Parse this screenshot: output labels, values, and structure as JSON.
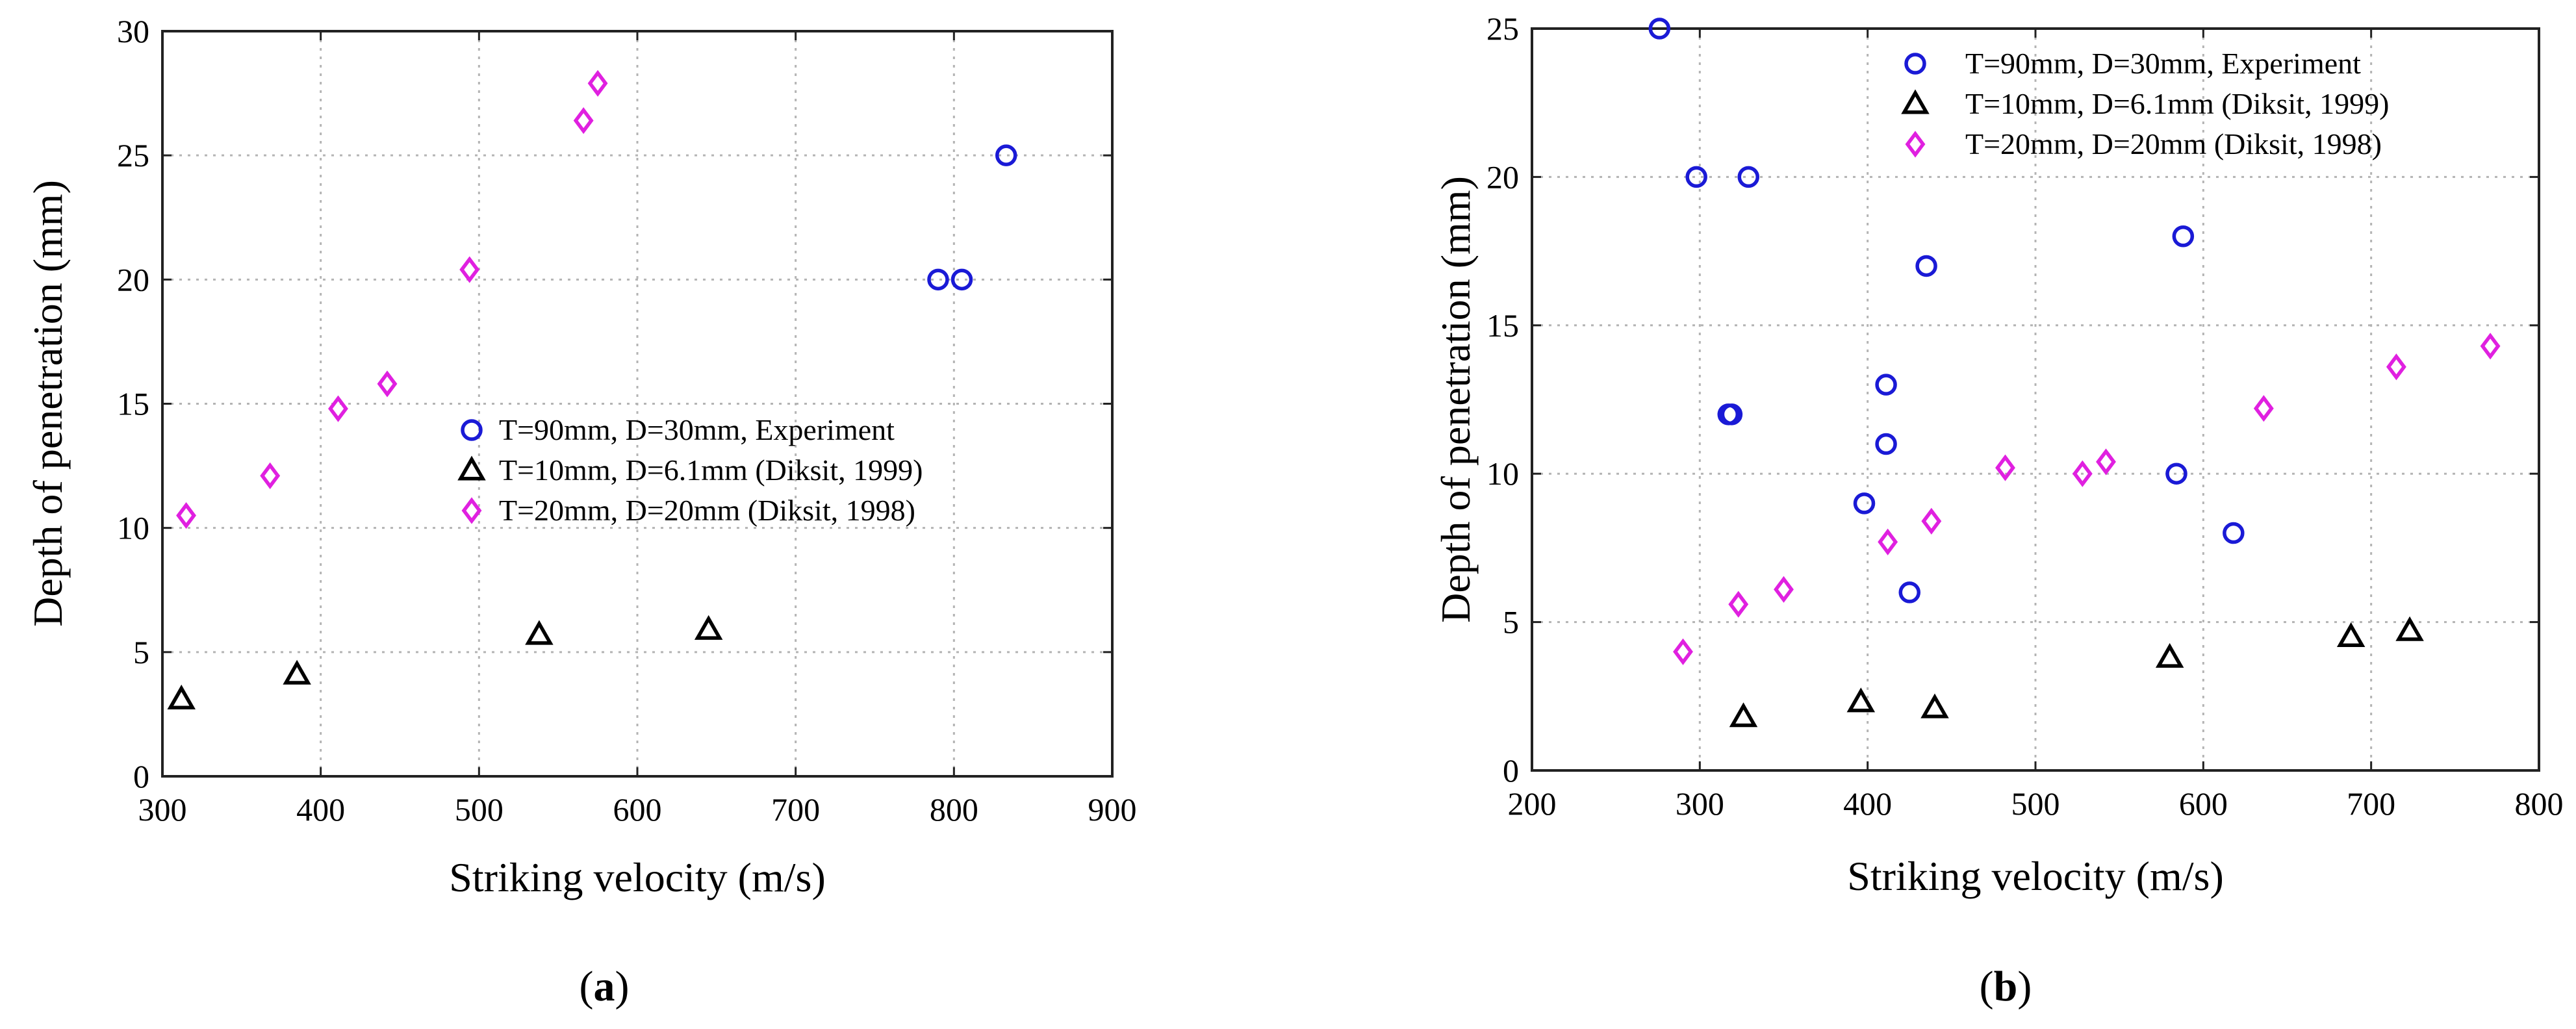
{
  "colors": {
    "series_blue": "#1a1ad6",
    "series_black": "#000000",
    "series_magenta": "#e020e0"
  },
  "chart_data": [
    {
      "type": "scatter",
      "panel_label": "(a)",
      "panel_letter": "a",
      "xlabel": "Striking velocity (m/s)",
      "ylabel": "Depth of penetration (mm)",
      "xlim": [
        300,
        900
      ],
      "ylim": [
        0,
        30
      ],
      "xticks": [
        300,
        400,
        500,
        600,
        700,
        800,
        900
      ],
      "yticks": [
        0,
        5,
        10,
        15,
        20,
        25,
        30
      ],
      "grid": true,
      "legend_position": "center-right",
      "series": [
        {
          "name": "T=90mm, D=30mm, Experiment",
          "marker": "circle",
          "color": "#1a1ad6",
          "points": [
            [
              790,
              20
            ],
            [
              805,
              20
            ],
            [
              833,
              25
            ]
          ]
        },
        {
          "name": "T=10mm, D=6.1mm (Diksit, 1999)",
          "marker": "triangle",
          "color": "#000000",
          "points": [
            [
              312,
              3.1
            ],
            [
              385,
              4.1
            ],
            [
              538,
              5.7
            ],
            [
              645,
              5.9
            ]
          ]
        },
        {
          "name": "T=20mm, D=20mm (Diksit, 1998)",
          "marker": "diamond",
          "color": "#e020e0",
          "points": [
            [
              315,
              10.5
            ],
            [
              368,
              12.1
            ],
            [
              411,
              14.8
            ],
            [
              442,
              15.8
            ],
            [
              494,
              20.4
            ],
            [
              566,
              26.4
            ],
            [
              575,
              27.9
            ]
          ]
        }
      ]
    },
    {
      "type": "scatter",
      "panel_label": "(b)",
      "panel_letter": "b",
      "xlabel": "Striking velocity (m/s)",
      "ylabel": "Depth of penetration (mm)",
      "xlim": [
        200,
        800
      ],
      "ylim": [
        0,
        25
      ],
      "xticks": [
        200,
        300,
        400,
        500,
        600,
        700,
        800
      ],
      "yticks": [
        0,
        5,
        10,
        15,
        20,
        25
      ],
      "grid": true,
      "legend_position": "top-right",
      "series": [
        {
          "name": "T=90mm, D=30mm, Experiment",
          "marker": "circle",
          "color": "#1a1ad6",
          "points": [
            [
              276,
              25
            ],
            [
              298,
              20
            ],
            [
              329,
              20
            ],
            [
              317,
              12
            ],
            [
              319,
              12
            ],
            [
              398,
              9
            ],
            [
              411,
              13
            ],
            [
              411,
              11
            ],
            [
              425,
              6
            ],
            [
              435,
              17
            ],
            [
              584,
              10
            ],
            [
              588,
              18
            ],
            [
              618,
              8
            ]
          ]
        },
        {
          "name": "T=10mm, D=6.1mm (Diksit, 1999)",
          "marker": "triangle",
          "color": "#000000",
          "points": [
            [
              326,
              1.8
            ],
            [
              396,
              2.3
            ],
            [
              440,
              2.1
            ],
            [
              580,
              3.8
            ],
            [
              688,
              4.5
            ],
            [
              723,
              4.7
            ]
          ]
        },
        {
          "name": "T=20mm, D=20mm (Diksit, 1998)",
          "marker": "diamond",
          "color": "#e020e0",
          "points": [
            [
              290,
              4.0
            ],
            [
              323,
              5.6
            ],
            [
              350,
              6.1
            ],
            [
              412,
              7.7
            ],
            [
              438,
              8.4
            ],
            [
              482,
              10.2
            ],
            [
              528,
              10.0
            ],
            [
              542,
              10.4
            ],
            [
              636,
              12.2
            ],
            [
              715,
              13.6
            ],
            [
              771,
              14.3
            ]
          ]
        }
      ]
    }
  ]
}
